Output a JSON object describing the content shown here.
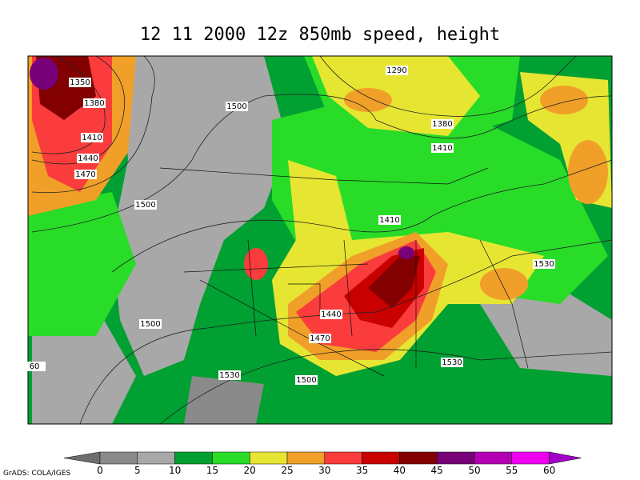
{
  "title": "12 11 2000 12z 850mb speed, height",
  "contour_labels": [
    "1350",
    "1380",
    "1410",
    "1440",
    "1470",
    "1500",
    "1290",
    "1380",
    "1410",
    "1500",
    "1410",
    "1530",
    "1440",
    "1500",
    "1470",
    "1530",
    "1530",
    "1500",
    "60"
  ],
  "colorbar": {
    "labels": [
      "0",
      "5",
      "10",
      "15",
      "20",
      "25",
      "30",
      "35",
      "40",
      "45",
      "50",
      "55",
      "60"
    ],
    "colors": [
      "#6e6e6e",
      "#8a8a8a",
      "#a8a8a8",
      "#00a032",
      "#28dc28",
      "#e6e632",
      "#f0a028",
      "#fa3c3c",
      "#c80000",
      "#820000",
      "#780078",
      "#b400b4",
      "#f000f0",
      "#a000c8"
    ]
  },
  "credit": "GrADS: COLA/IGES"
}
